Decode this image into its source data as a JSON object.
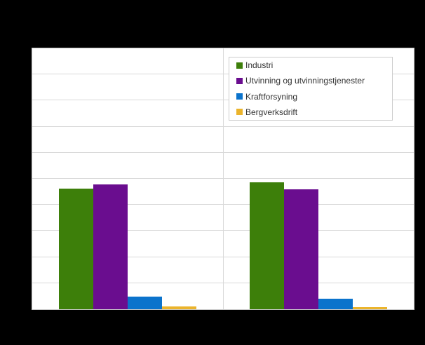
{
  "page": {
    "background_color": "#000000",
    "plot_background_color": "#ffffff",
    "gridline_color": "#d9d9d9",
    "plot_border_color": "#c9c9c9",
    "legend_border_color": "#cccccc",
    "legend_text_color": "#333333"
  },
  "chart_data": {
    "type": "bar",
    "title": "",
    "xlabel": "",
    "ylabel": "",
    "categories": [
      "",
      ""
    ],
    "category_labels_visible": false,
    "y_tick_labels_visible": false,
    "value_unit": "percent of y-axis height (axis tick labels not rendered/visible in image)",
    "ylim": [
      0,
      100
    ],
    "gridline_interval": 10,
    "grid": true,
    "legend_position": "inside-top-right",
    "series": [
      {
        "name": "Industri",
        "color": "#3d7f0a",
        "values": [
          46.3,
          48.7
        ]
      },
      {
        "name": "Utvinning og utvinningstjenester",
        "color": "#6a0d8f",
        "values": [
          47.9,
          46.0
        ]
      },
      {
        "name": "Kraftforsyning",
        "color": "#0b73cc",
        "values": [
          4.8,
          4.0
        ]
      },
      {
        "name": "Bergverksdrift",
        "color": "#ebb42c",
        "values": [
          1.1,
          0.8
        ]
      }
    ]
  }
}
